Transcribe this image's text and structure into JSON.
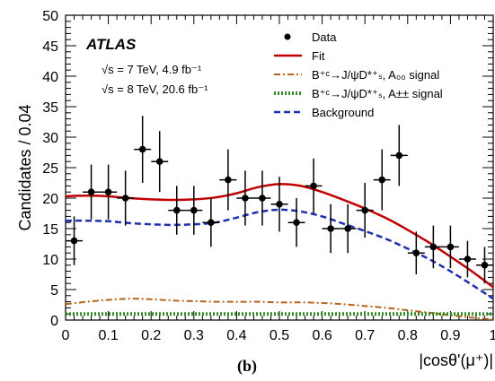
{
  "chart_data": {
    "type": "scatter",
    "xlabel": "|cosθ'(μ⁺)|",
    "ylabel": "Candidates / 0.04",
    "xlim": [
      0,
      1
    ],
    "ylim": [
      0,
      50
    ],
    "x_ticks": [
      "0",
      "0.1",
      "0.2",
      "0.3",
      "0.4",
      "0.5",
      "0.6",
      "0.7",
      "0.8",
      "0.9",
      "1"
    ],
    "y_ticks": [
      "0",
      "5",
      "10",
      "15",
      "20",
      "25",
      "30",
      "35",
      "40",
      "45",
      "50"
    ],
    "panel_label": "(b)",
    "experiment": "ATLAS",
    "run_lines": [
      "√s = 7 TeV, 4.9 fb⁻¹",
      "√s = 8 TeV, 20.6 fb⁻¹"
    ],
    "legend": {
      "position": "top-right",
      "entries": [
        {
          "label": "Data",
          "style": "marker"
        },
        {
          "label": "Fit",
          "style": "solid",
          "color": "#c00000"
        },
        {
          "label": "B⁺ᶜ→J/ψD*⁺ₛ, A₀₀ signal",
          "style": "dashdot",
          "color": "#b5651d"
        },
        {
          "label": "B⁺ᶜ→J/ψD*⁺ₛ, A±± signal",
          "style": "dotted",
          "color": "#2e8b22"
        },
        {
          "label": "Background",
          "style": "dashed",
          "color": "#1f2fb0"
        }
      ]
    },
    "data_points": {
      "x": [
        0.02,
        0.06,
        0.1,
        0.14,
        0.18,
        0.22,
        0.26,
        0.3,
        0.34,
        0.38,
        0.42,
        0.46,
        0.5,
        0.54,
        0.58,
        0.62,
        0.66,
        0.7,
        0.74,
        0.78,
        0.82,
        0.86,
        0.9,
        0.94,
        0.98
      ],
      "y": [
        13,
        21,
        21,
        20,
        28,
        26,
        18,
        18,
        16,
        23,
        20,
        20,
        19,
        16,
        22,
        15,
        15,
        18,
        23,
        27,
        11,
        12,
        12,
        10,
        9
      ],
      "err": [
        4,
        4.5,
        4.5,
        4.5,
        5.5,
        5,
        4,
        4,
        4,
        5,
        4.5,
        4.5,
        4.5,
        4,
        4.5,
        4,
        4,
        4.5,
        5,
        5,
        3.5,
        3.5,
        3.5,
        3,
        3
      ]
    },
    "series": [
      {
        "name": "Fit",
        "color": "#c00000",
        "style": "solid",
        "x": [
          0,
          0.05,
          0.1,
          0.15,
          0.2,
          0.25,
          0.3,
          0.35,
          0.4,
          0.45,
          0.5,
          0.55,
          0.6,
          0.65,
          0.7,
          0.75,
          0.8,
          0.85,
          0.9,
          0.95,
          1.0
        ],
        "y": [
          20.3,
          20.4,
          20.3,
          20.0,
          19.8,
          19.7,
          19.8,
          20.1,
          20.8,
          21.8,
          22.3,
          22.0,
          21.0,
          19.7,
          18.3,
          16.7,
          14.8,
          12.7,
          10.4,
          8.0,
          5.4
        ]
      },
      {
        "name": "B⁺ᶜ→J/ψD*⁺ₛ, A₀₀ signal",
        "color": "#b5651d",
        "style": "dashdot",
        "x": [
          0,
          0.05,
          0.1,
          0.15,
          0.2,
          0.25,
          0.3,
          0.35,
          0.4,
          0.45,
          0.5,
          0.55,
          0.6,
          0.65,
          0.7,
          0.75,
          0.8,
          0.85,
          0.9,
          0.95,
          1.0
        ],
        "y": [
          2.6,
          3.0,
          3.3,
          3.5,
          3.4,
          3.2,
          3.1,
          3.0,
          3.0,
          3.0,
          2.9,
          2.9,
          2.8,
          2.6,
          2.3,
          2.0,
          1.6,
          1.2,
          0.8,
          0.4,
          0.1
        ]
      },
      {
        "name": "B⁺ᶜ→J/ψD*⁺ₛ, A±± signal",
        "color": "#2e8b22",
        "style": "dotted",
        "x": [
          0,
          0.05,
          0.1,
          0.15,
          0.2,
          0.25,
          0.3,
          0.35,
          0.4,
          0.45,
          0.5,
          0.55,
          0.6,
          0.65,
          0.7,
          0.75,
          0.8,
          0.85,
          0.9,
          0.95,
          1.0
        ],
        "y": [
          1.0,
          1.0,
          1.0,
          1.0,
          1.0,
          1.0,
          1.0,
          1.0,
          1.0,
          1.0,
          1.0,
          1.0,
          1.0,
          1.0,
          1.0,
          1.0,
          1.0,
          1.0,
          1.0,
          1.0,
          1.0
        ]
      },
      {
        "name": "Background",
        "color": "#1f2fb0",
        "style": "dashed",
        "x": [
          0,
          0.05,
          0.1,
          0.15,
          0.2,
          0.25,
          0.3,
          0.35,
          0.4,
          0.45,
          0.5,
          0.55,
          0.6,
          0.65,
          0.7,
          0.75,
          0.8,
          0.85,
          0.9,
          0.95,
          1.0
        ],
        "y": [
          16.3,
          16.3,
          16.2,
          15.9,
          15.7,
          15.6,
          15.7,
          16.0,
          16.8,
          17.7,
          18.1,
          17.8,
          17.0,
          15.8,
          14.6,
          13.3,
          11.7,
          10.0,
          8.0,
          5.8,
          3.5
        ]
      }
    ]
  }
}
